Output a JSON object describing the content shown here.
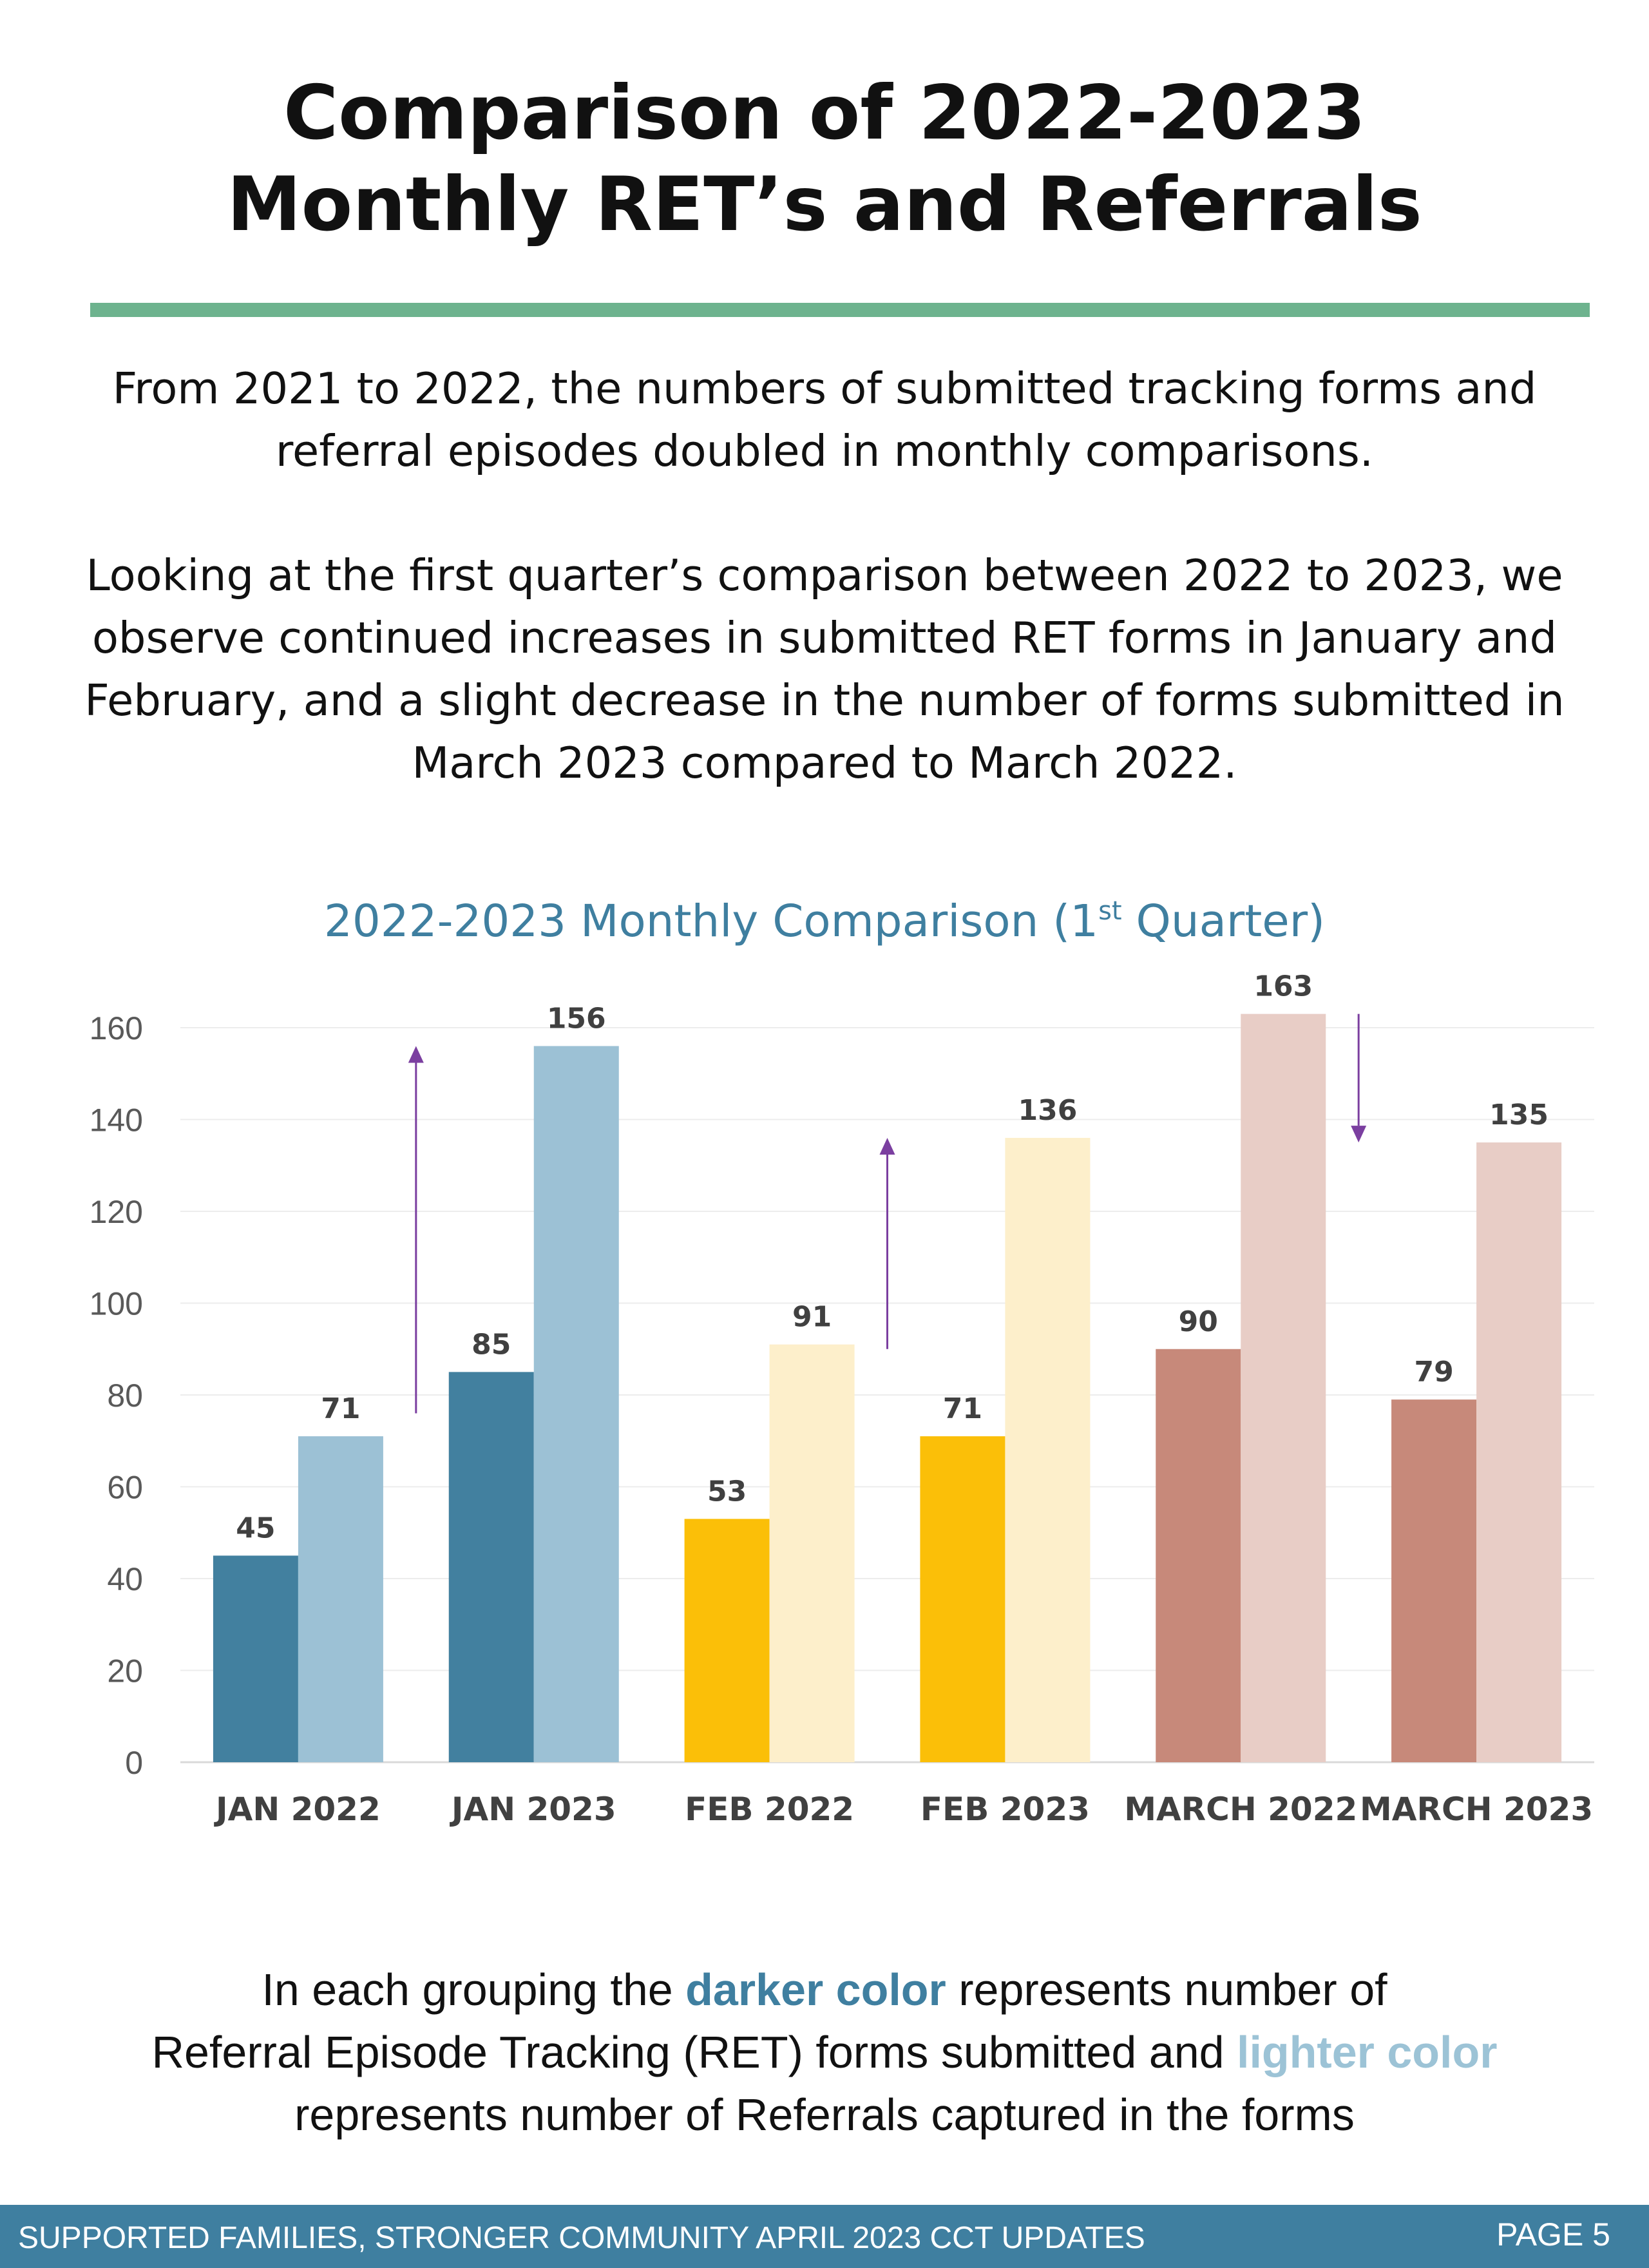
{
  "header": {
    "title_line1": "Comparison of 2022-2023",
    "title_line2": "Monthly RET’s and Referrals"
  },
  "intro": {
    "p1_line1": "From 2021 to 2022, the numbers of submitted tracking forms and",
    "p1_line2": "referral episodes doubled in monthly comparisons.",
    "p2_line1": "Looking at the first quarter’s comparison between 2022 to 2023, we",
    "p2_line2": "observe continued increases in submitted RET forms in January and",
    "p2_line3": "February, and a slight decrease in the number of forms submitted in",
    "p2_line4": "March 2023 compared to March 2022."
  },
  "chart_data": {
    "type": "bar",
    "title_main": "2022-2023 Monthly Comparison (1",
    "title_sup": "st",
    "title_end": " Quarter)",
    "categories": [
      "JAN 2022",
      "JAN 2023",
      "FEB 2022",
      "FEB 2023",
      "MARCH 2022",
      "MARCH 2023"
    ],
    "series": [
      {
        "values": [
          45,
          85,
          53,
          71,
          90,
          79
        ]
      },
      {
        "values": [
          71,
          156,
          91,
          136,
          163,
          135
        ]
      }
    ],
    "colors_dark": [
      "#42809f",
      "#42809f",
      "#fbbf08",
      "#fbbf08",
      "#c7897a",
      "#c7897a"
    ],
    "colors_light": [
      "#9cc1d5",
      "#9cc1d5",
      "#fdefcb",
      "#fdefcb",
      "#e8cdc6",
      "#e8cdc6"
    ],
    "y_ticks": [
      0,
      20,
      40,
      60,
      80,
      100,
      120,
      140,
      160
    ],
    "ylim": [
      0,
      163
    ],
    "grid": true,
    "arrow_color": "#7b3fa0",
    "arrows": [
      {
        "from": 76,
        "to": 156,
        "direction": "up"
      },
      {
        "from": 90,
        "to": 136,
        "direction": "up"
      },
      {
        "from": 163,
        "to": 135,
        "direction": "down"
      }
    ]
  },
  "note": {
    "line1_a": "In each grouping the ",
    "line1_b": "darker color",
    "line1_c": " represents number of",
    "line2_a": "Referral Episode Tracking (RET) forms submitted and ",
    "line2_b": "lighter color",
    "line3": "represents number of Referrals captured in the forms"
  },
  "footer": {
    "left": "SUPPORTED FAMILIES, STRONGER COMMUNITY APRIL 2023 CCT UPDATES",
    "right": "PAGE 5"
  }
}
